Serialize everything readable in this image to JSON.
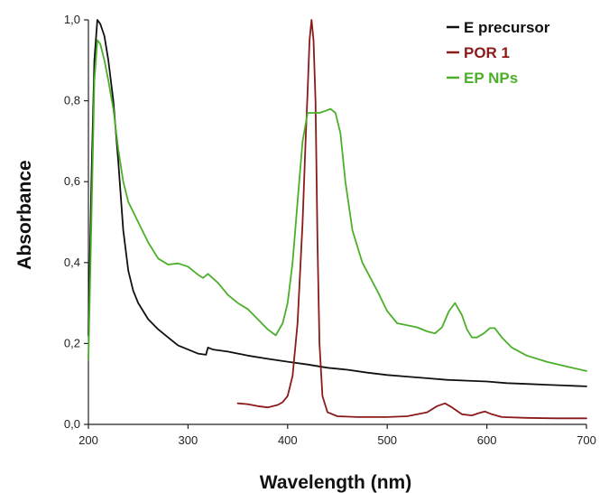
{
  "chart_data": {
    "type": "line",
    "title": "",
    "xlabel": "Wavelength (nm)",
    "ylabel": "Absorbance",
    "xlim": [
      200,
      700
    ],
    "ylim": [
      0,
      1.0
    ],
    "xticks": [
      200,
      300,
      400,
      500,
      600,
      700
    ],
    "xtick_labels": [
      "200",
      "300",
      "400",
      "500",
      "600",
      "700"
    ],
    "yticks": [
      0,
      0.2,
      0.4,
      0.6,
      0.8,
      1.0
    ],
    "ytick_labels": [
      "0,0",
      "0,2",
      "0,4",
      "0,6",
      "0,8",
      "1,0"
    ],
    "grid": false,
    "legend_position": "top-right",
    "series": [
      {
        "name": "E precursor",
        "color": "#111111",
        "points": [
          [
            200,
            0.22
          ],
          [
            203,
            0.6
          ],
          [
            206,
            0.9
          ],
          [
            209,
            1.0
          ],
          [
            212,
            0.99
          ],
          [
            216,
            0.96
          ],
          [
            220,
            0.9
          ],
          [
            225,
            0.8
          ],
          [
            230,
            0.65
          ],
          [
            235,
            0.48
          ],
          [
            240,
            0.38
          ],
          [
            245,
            0.33
          ],
          [
            250,
            0.3
          ],
          [
            260,
            0.26
          ],
          [
            270,
            0.235
          ],
          [
            280,
            0.215
          ],
          [
            290,
            0.195
          ],
          [
            300,
            0.185
          ],
          [
            310,
            0.175
          ],
          [
            318,
            0.172
          ],
          [
            320,
            0.19
          ],
          [
            325,
            0.185
          ],
          [
            340,
            0.18
          ],
          [
            360,
            0.17
          ],
          [
            380,
            0.162
          ],
          [
            400,
            0.155
          ],
          [
            420,
            0.148
          ],
          [
            440,
            0.14
          ],
          [
            460,
            0.135
          ],
          [
            480,
            0.128
          ],
          [
            500,
            0.122
          ],
          [
            520,
            0.118
          ],
          [
            540,
            0.114
          ],
          [
            560,
            0.11
          ],
          [
            580,
            0.108
          ],
          [
            600,
            0.106
          ],
          [
            620,
            0.102
          ],
          [
            640,
            0.1
          ],
          [
            660,
            0.098
          ],
          [
            680,
            0.096
          ],
          [
            700,
            0.094
          ]
        ]
      },
      {
        "name": "POR 1",
        "color": "#8b1a1a",
        "points": [
          [
            350,
            0.052
          ],
          [
            360,
            0.05
          ],
          [
            370,
            0.045
          ],
          [
            380,
            0.042
          ],
          [
            390,
            0.048
          ],
          [
            395,
            0.055
          ],
          [
            400,
            0.07
          ],
          [
            405,
            0.12
          ],
          [
            410,
            0.25
          ],
          [
            415,
            0.5
          ],
          [
            418,
            0.7
          ],
          [
            420,
            0.82
          ],
          [
            422,
            0.95
          ],
          [
            424,
            1.0
          ],
          [
            426,
            0.95
          ],
          [
            428,
            0.8
          ],
          [
            430,
            0.45
          ],
          [
            432,
            0.2
          ],
          [
            435,
            0.07
          ],
          [
            440,
            0.03
          ],
          [
            450,
            0.02
          ],
          [
            470,
            0.018
          ],
          [
            500,
            0.018
          ],
          [
            520,
            0.02
          ],
          [
            540,
            0.03
          ],
          [
            550,
            0.045
          ],
          [
            558,
            0.052
          ],
          [
            565,
            0.042
          ],
          [
            575,
            0.025
          ],
          [
            585,
            0.022
          ],
          [
            592,
            0.028
          ],
          [
            598,
            0.032
          ],
          [
            605,
            0.025
          ],
          [
            615,
            0.018
          ],
          [
            640,
            0.016
          ],
          [
            670,
            0.015
          ],
          [
            700,
            0.015
          ]
        ]
      },
      {
        "name": "EP NPs",
        "color": "#4caf2a",
        "points": [
          [
            200,
            0.16
          ],
          [
            203,
            0.5
          ],
          [
            206,
            0.85
          ],
          [
            209,
            0.95
          ],
          [
            212,
            0.94
          ],
          [
            216,
            0.9
          ],
          [
            220,
            0.85
          ],
          [
            225,
            0.78
          ],
          [
            230,
            0.68
          ],
          [
            235,
            0.6
          ],
          [
            240,
            0.55
          ],
          [
            250,
            0.5
          ],
          [
            260,
            0.45
          ],
          [
            270,
            0.41
          ],
          [
            280,
            0.395
          ],
          [
            290,
            0.398
          ],
          [
            300,
            0.39
          ],
          [
            310,
            0.37
          ],
          [
            315,
            0.362
          ],
          [
            320,
            0.372
          ],
          [
            330,
            0.35
          ],
          [
            340,
            0.32
          ],
          [
            350,
            0.3
          ],
          [
            360,
            0.285
          ],
          [
            370,
            0.26
          ],
          [
            380,
            0.235
          ],
          [
            388,
            0.22
          ],
          [
            395,
            0.25
          ],
          [
            400,
            0.3
          ],
          [
            405,
            0.4
          ],
          [
            410,
            0.55
          ],
          [
            415,
            0.7
          ],
          [
            420,
            0.77
          ],
          [
            426,
            0.77
          ],
          [
            432,
            0.77
          ],
          [
            438,
            0.775
          ],
          [
            443,
            0.78
          ],
          [
            448,
            0.77
          ],
          [
            453,
            0.72
          ],
          [
            458,
            0.6
          ],
          [
            465,
            0.48
          ],
          [
            475,
            0.4
          ],
          [
            490,
            0.33
          ],
          [
            500,
            0.28
          ],
          [
            510,
            0.25
          ],
          [
            520,
            0.245
          ],
          [
            530,
            0.24
          ],
          [
            540,
            0.23
          ],
          [
            548,
            0.225
          ],
          [
            555,
            0.24
          ],
          [
            562,
            0.28
          ],
          [
            568,
            0.3
          ],
          [
            575,
            0.27
          ],
          [
            580,
            0.235
          ],
          [
            585,
            0.215
          ],
          [
            590,
            0.215
          ],
          [
            597,
            0.225
          ],
          [
            603,
            0.238
          ],
          [
            608,
            0.238
          ],
          [
            615,
            0.215
          ],
          [
            625,
            0.19
          ],
          [
            640,
            0.17
          ],
          [
            660,
            0.155
          ],
          [
            680,
            0.143
          ],
          [
            700,
            0.132
          ]
        ]
      }
    ]
  }
}
